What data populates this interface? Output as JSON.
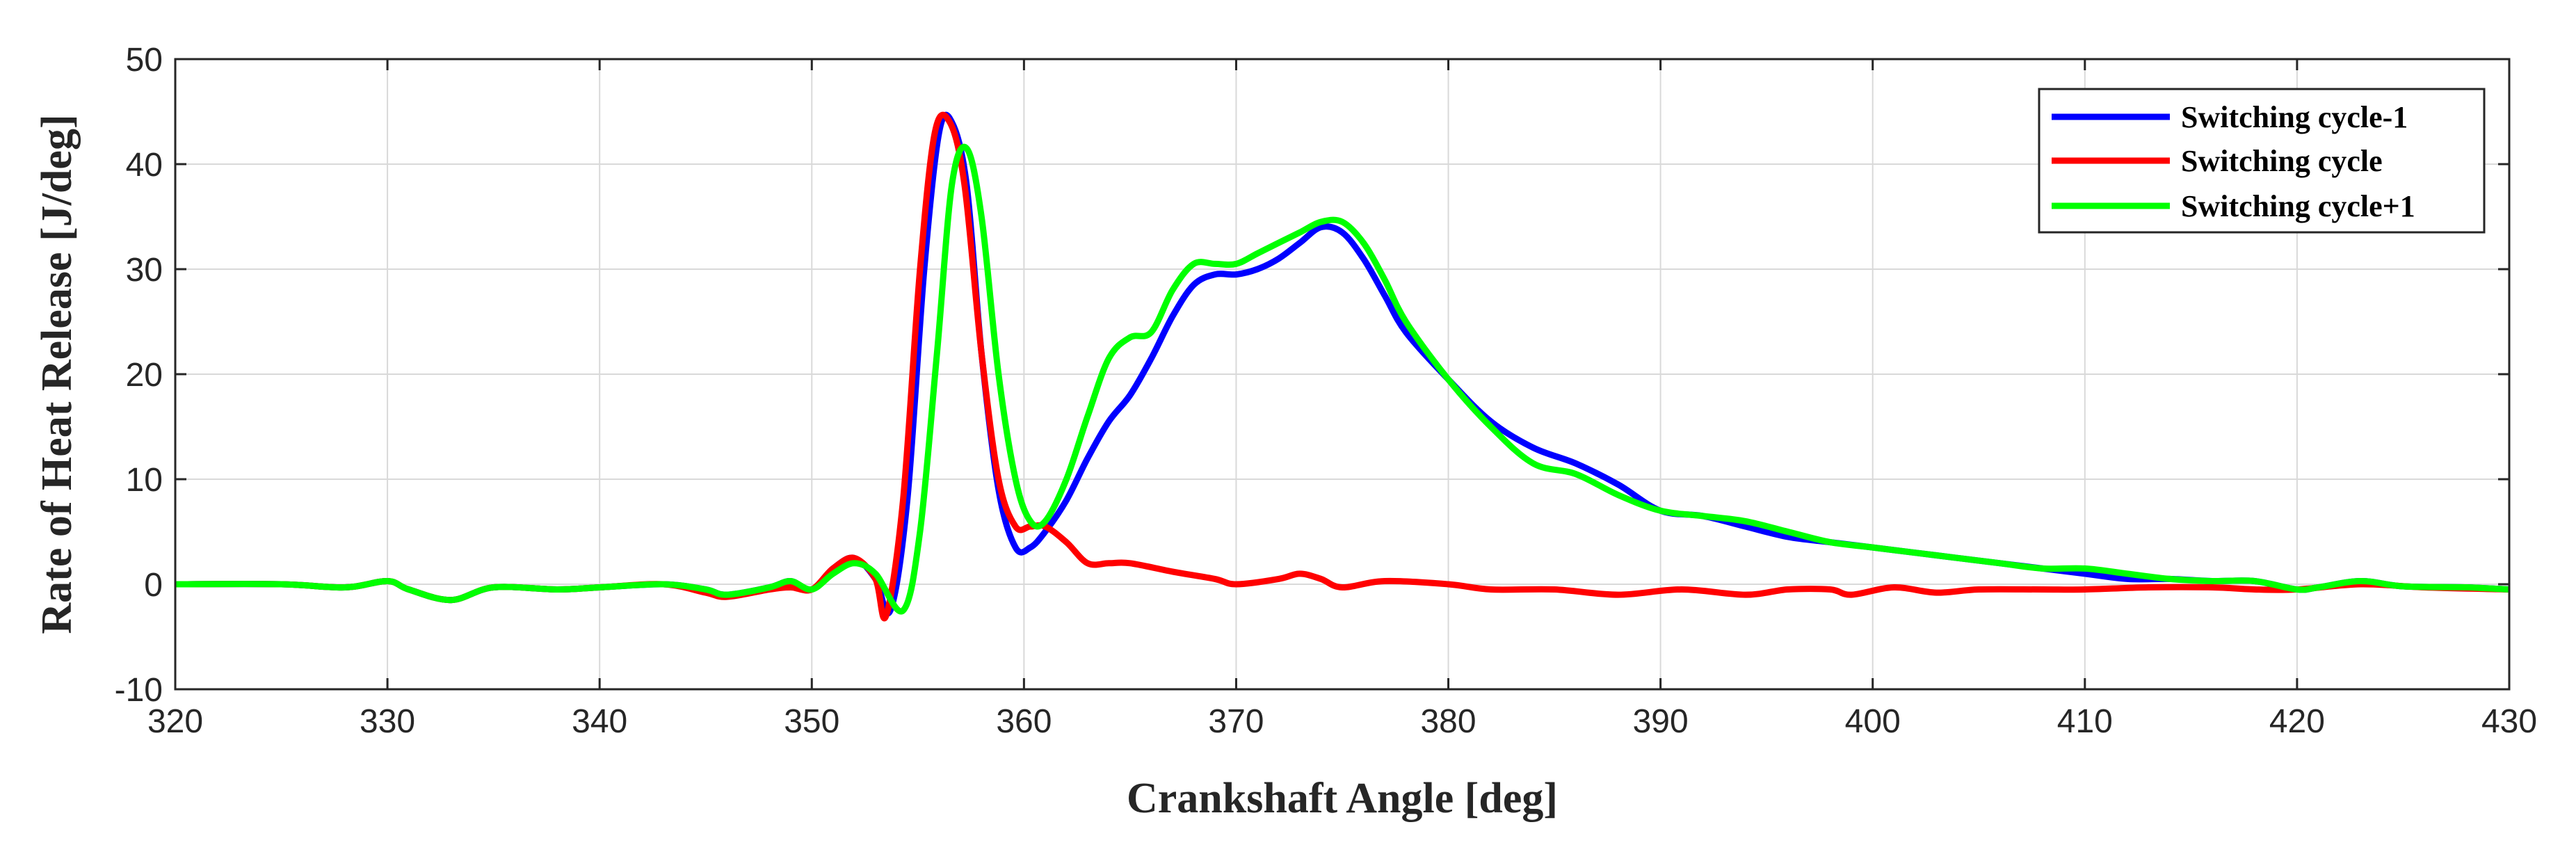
{
  "chart_data": {
    "type": "line",
    "title": "",
    "xlabel": "Crankshaft Angle [deg]",
    "ylabel": "Rate of Heat Release [J/deg]",
    "xlim": [
      320,
      430
    ],
    "ylim": [
      -10,
      50
    ],
    "xticks": [
      320,
      330,
      340,
      350,
      360,
      370,
      380,
      390,
      400,
      410,
      420,
      430
    ],
    "yticks": [
      -10,
      0,
      10,
      20,
      30,
      40,
      50
    ],
    "xtick_labels": [
      "320",
      "330",
      "340",
      "350",
      "360",
      "370",
      "380",
      "390",
      "400",
      "410",
      "420",
      "430"
    ],
    "ytick_labels": [
      "-10",
      "0",
      "10",
      "20",
      "30",
      "40",
      "50"
    ],
    "grid": true,
    "legend_position": "top-right",
    "series": [
      {
        "name": "Switching cycle-1",
        "color": "#0000ff",
        "x": [
          320,
          325,
          328,
          330,
          331,
          333,
          335,
          338,
          340,
          343,
          345,
          346,
          348,
          349,
          350,
          351,
          352,
          353,
          353.7,
          354.5,
          355.3,
          356.0,
          356.6,
          357.3,
          358.0,
          358.8,
          359.6,
          360.3,
          361,
          362,
          363,
          364,
          365,
          366,
          367,
          368,
          369,
          370,
          371,
          372,
          373,
          374,
          375,
          376,
          377,
          378,
          380,
          382,
          384,
          386,
          388,
          390,
          392,
          394,
          396,
          398,
          400,
          402,
          404,
          406,
          408,
          410,
          412,
          414,
          416,
          418,
          420,
          421,
          423,
          425,
          428,
          430
        ],
        "values": [
          0,
          0,
          -0.3,
          0.3,
          -0.5,
          -1.5,
          -0.3,
          -0.5,
          -0.3,
          0,
          -0.5,
          -1,
          -0.3,
          0.3,
          -0.5,
          1.5,
          2.5,
          0.5,
          -2.5,
          8,
          30,
          43,
          44,
          38,
          22,
          9,
          3.5,
          3.5,
          5,
          8,
          12,
          15.5,
          18,
          21.5,
          25.5,
          28.5,
          29.5,
          29.5,
          30,
          31,
          32.5,
          34,
          33.5,
          31,
          27.5,
          24,
          19.5,
          15.5,
          13,
          11.5,
          9.5,
          7,
          6.5,
          5.5,
          4.5,
          4,
          3.5,
          3,
          2.5,
          2,
          1.5,
          1,
          0.5,
          0.5,
          0.3,
          0.3,
          -0.5,
          -0.3,
          0.3,
          -0.2,
          -0.3,
          -0.5
        ]
      },
      {
        "name": "Switching cycle",
        "color": "#ff0000",
        "x": [
          320,
          325,
          328,
          330,
          331,
          333,
          335,
          338,
          340,
          343,
          345,
          346,
          348,
          349,
          350,
          351,
          352,
          353,
          353.5,
          354.3,
          355.1,
          355.8,
          356.5,
          357.2,
          358.0,
          358.8,
          359.6,
          360.3,
          361,
          362,
          363,
          364,
          365,
          367,
          369,
          370,
          372,
          373,
          374,
          375,
          377,
          380,
          382,
          385,
          388,
          391,
          394,
          396,
          398,
          399,
          401,
          403,
          405,
          408,
          410,
          413,
          416,
          418,
          420,
          423,
          426,
          430
        ],
        "values": [
          0,
          0,
          -0.3,
          0.3,
          -0.5,
          -1.5,
          -0.3,
          -0.5,
          -0.3,
          0,
          -0.8,
          -1.2,
          -0.5,
          -0.3,
          -0.5,
          1.5,
          2.5,
          0.5,
          -3,
          8,
          30,
          43,
          44,
          38,
          22,
          10,
          5.5,
          5.5,
          5.5,
          4,
          2,
          2,
          2,
          1.2,
          0.5,
          0,
          0.5,
          1,
          0.5,
          -0.3,
          0.3,
          0,
          -0.5,
          -0.5,
          -1,
          -0.5,
          -1,
          -0.5,
          -0.5,
          -1,
          -0.3,
          -0.8,
          -0.5,
          -0.5,
          -0.5,
          -0.3,
          -0.3,
          -0.5,
          -0.5,
          0,
          -0.3,
          -0.5
        ]
      },
      {
        "name": "Switching cycle+1",
        "color": "#00ff00",
        "x": [
          320,
          325,
          328,
          330,
          331,
          333,
          335,
          338,
          340,
          343,
          345,
          346,
          348,
          349,
          350,
          351,
          352,
          353,
          354.3,
          355.1,
          355.9,
          356.6,
          357.3,
          358.0,
          358.8,
          359.6,
          360.3,
          361,
          362,
          363,
          364,
          365,
          366,
          367,
          368,
          369,
          370,
          371,
          372,
          373,
          374,
          375,
          376,
          377,
          378,
          380,
          382,
          384,
          386,
          388,
          390,
          392,
          394,
          396,
          398,
          400,
          402,
          404,
          406,
          408,
          410,
          412,
          414,
          416,
          418,
          420,
          421,
          423,
          425,
          428,
          430
        ],
        "values": [
          0,
          0,
          -0.3,
          0.3,
          -0.5,
          -1.5,
          -0.3,
          -0.5,
          -0.3,
          0,
          -0.5,
          -1,
          -0.3,
          0.3,
          -0.5,
          1,
          2,
          1,
          -2.5,
          5,
          22,
          38,
          41.5,
          35,
          20,
          10,
          6,
          6,
          10,
          16,
          21.5,
          23.5,
          24,
          28,
          30.5,
          30.5,
          30.5,
          31.5,
          32.5,
          33.5,
          34.5,
          34.5,
          32.5,
          29,
          25,
          19.5,
          15,
          11.5,
          10.5,
          8.5,
          7,
          6.5,
          6,
          5,
          4,
          3.5,
          3,
          2.5,
          2,
          1.5,
          1.5,
          1,
          0.5,
          0.3,
          0.3,
          -0.5,
          -0.3,
          0.3,
          -0.2,
          -0.3,
          -0.5
        ]
      }
    ]
  }
}
